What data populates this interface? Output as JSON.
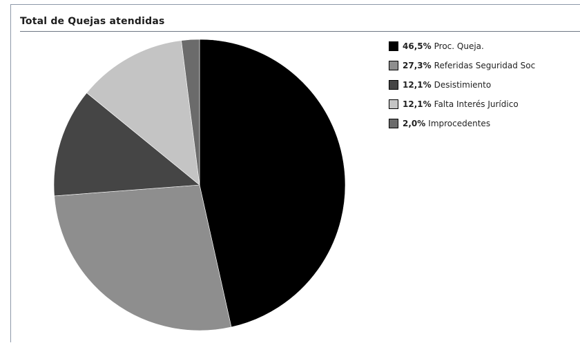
{
  "panel": {
    "title": "Total de Quejas atendidas"
  },
  "chart_data": {
    "type": "pie",
    "categories": [
      "Proc. Queja.",
      "Referidas Seguridad Soc",
      "Desistimiento",
      "Falta Interés Jurídico",
      "Improcedentes"
    ],
    "values": [
      46.5,
      27.3,
      12.1,
      12.1,
      2.0
    ],
    "percent_labels": [
      "46,5%",
      "27,3%",
      "12,1%",
      "12,1%",
      "2,0%"
    ],
    "colors": [
      "#000000",
      "#8e8e8e",
      "#454545",
      "#c4c4c4",
      "#6b6b6b"
    ],
    "title": "Total de Quejas atendidas",
    "legend_position": "right",
    "start": "top, clockwise"
  }
}
